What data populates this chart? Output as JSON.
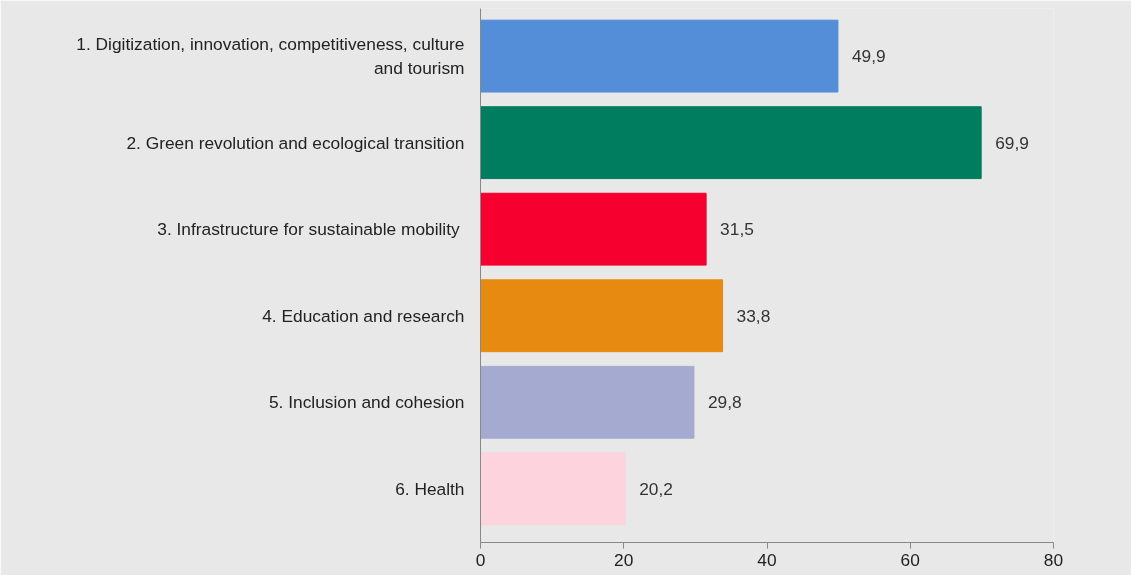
{
  "chart_data": {
    "type": "bar",
    "orientation": "horizontal",
    "categories": [
      "1. Digitization, innovation, competitiveness, culture and tourism",
      "2. Green revolution and ecological transition",
      "3.  Infrastructure for sustainable mobility",
      "4. Education and research",
      "5. Inclusion and cohesion",
      "6. Health"
    ],
    "values": [
      49.9,
      69.9,
      31.5,
      33.8,
      29.8,
      20.2
    ],
    "value_labels": [
      "49,9",
      "69,9",
      "31,5",
      "33,8",
      "29,8",
      "20,2"
    ],
    "colors": [
      "#548dd8",
      "#007d5f",
      "#f5002f",
      "#e68a12",
      "#a5abd0",
      "#fdd3dd"
    ],
    "xlim": [
      0,
      80
    ],
    "xticks": [
      0,
      20,
      40,
      60,
      80
    ]
  }
}
